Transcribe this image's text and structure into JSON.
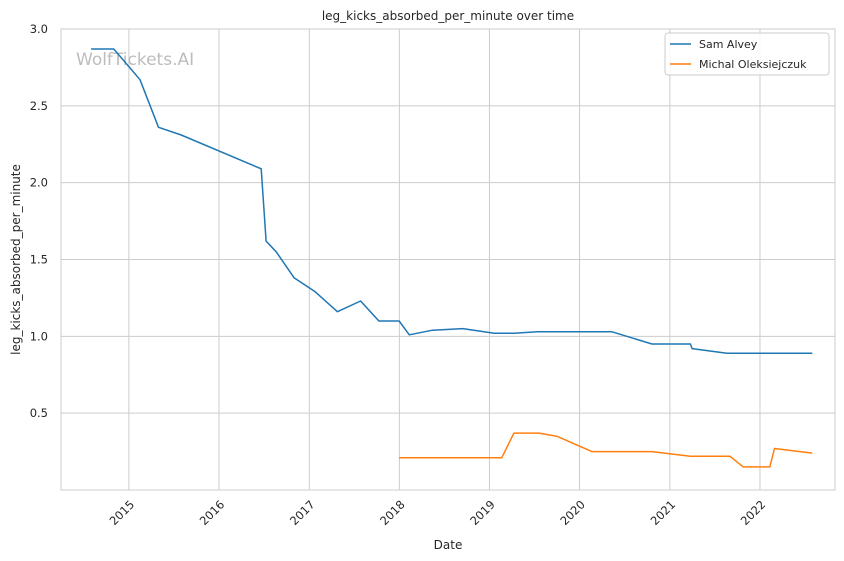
{
  "chart_data": {
    "type": "line",
    "title": "leg_kicks_absorbed_per_minute over time",
    "xlabel": "Date",
    "ylabel": "leg_kicks_absorbed_per_minute",
    "xlim": [
      "2014-04-01",
      "2022-11-01"
    ],
    "ylim": [
      0.0,
      3.0
    ],
    "x_ticks": [
      "2015",
      "2016",
      "2017",
      "2018",
      "2019",
      "2020",
      "2021",
      "2022"
    ],
    "y_ticks": [
      "0.5",
      "1.0",
      "1.5",
      "2.0",
      "2.5",
      "3.0"
    ],
    "grid": true,
    "legend_position": "top-right",
    "watermark": "WolfTickets.AI",
    "series": [
      {
        "name": "Sam Alvey",
        "color": "#1f77b4",
        "points": [
          [
            "2014-08-01",
            2.87
          ],
          [
            "2014-11-01",
            2.87
          ],
          [
            "2015-02-15",
            2.67
          ],
          [
            "2015-05-01",
            2.36
          ],
          [
            "2015-08-01",
            2.31
          ],
          [
            "2016-06-20",
            2.09
          ],
          [
            "2016-07-10",
            1.62
          ],
          [
            "2016-08-20",
            1.55
          ],
          [
            "2016-11-01",
            1.38
          ],
          [
            "2017-01-25",
            1.29
          ],
          [
            "2017-04-25",
            1.16
          ],
          [
            "2017-07-28",
            1.23
          ],
          [
            "2017-10-10",
            1.1
          ],
          [
            "2017-12-31",
            1.1
          ],
          [
            "2018-02-10",
            1.01
          ],
          [
            "2018-05-15",
            1.04
          ],
          [
            "2018-09-15",
            1.05
          ],
          [
            "2019-01-20",
            1.02
          ],
          [
            "2019-04-10",
            1.02
          ],
          [
            "2019-07-15",
            1.03
          ],
          [
            "2020-03-01",
            1.03
          ],
          [
            "2020-05-10",
            1.03
          ],
          [
            "2020-10-20",
            0.95
          ],
          [
            "2021-03-25",
            0.95
          ],
          [
            "2021-04-01",
            0.92
          ],
          [
            "2021-08-20",
            0.89
          ],
          [
            "2021-11-15",
            0.89
          ],
          [
            "2022-08-01",
            0.89
          ]
        ]
      },
      {
        "name": "Michal Oleksiejczuk",
        "color": "#ff7f0e",
        "points": [
          [
            "2017-12-31",
            0.21
          ],
          [
            "2019-02-20",
            0.21
          ],
          [
            "2019-04-10",
            0.37
          ],
          [
            "2019-07-20",
            0.37
          ],
          [
            "2019-10-01",
            0.35
          ],
          [
            "2020-02-20",
            0.25
          ],
          [
            "2020-10-20",
            0.25
          ],
          [
            "2021-03-25",
            0.22
          ],
          [
            "2021-09-01",
            0.22
          ],
          [
            "2021-10-25",
            0.15
          ],
          [
            "2022-02-10",
            0.15
          ],
          [
            "2022-03-01",
            0.27
          ],
          [
            "2022-08-01",
            0.24
          ]
        ]
      }
    ]
  }
}
